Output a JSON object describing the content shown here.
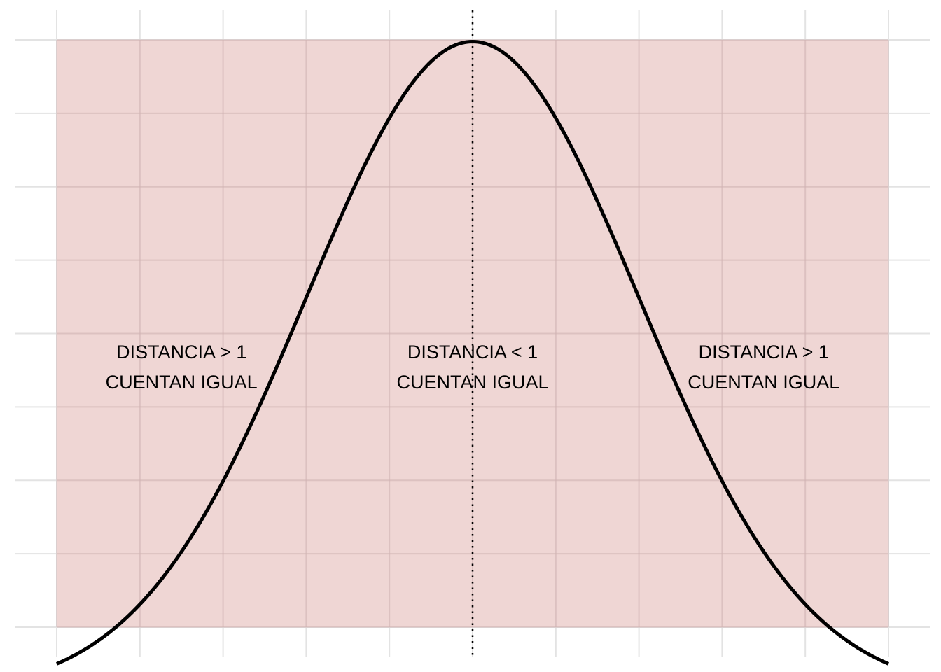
{
  "chart_data": {
    "type": "line",
    "title": "",
    "xlabel": "",
    "ylabel": "",
    "xlim": [
      -2.5,
      2.5
    ],
    "ylim": [
      0.04,
      0.4
    ],
    "grid": true,
    "curve": {
      "function": "normal_pdf",
      "mean": 0,
      "sd": 1,
      "x_range": [
        -2.5,
        2.5
      ],
      "color": "#000000"
    },
    "reference_line": {
      "x": 0,
      "style": "dotted",
      "color": "#000000"
    },
    "shaded_region": {
      "x_range": [
        -2.5,
        2.5
      ],
      "y_range": [
        0.04,
        0.4
      ],
      "color": "#e8c4c2"
    },
    "annotations": [
      {
        "x": -1.75,
        "y": 0.2,
        "line1": "DISTANCIA > 1",
        "line2": "CUENTAN IGUAL"
      },
      {
        "x": 0,
        "y": 0.2,
        "line1": "DISTANCIA < 1",
        "line2": "CUENTAN IGUAL"
      },
      {
        "x": 1.75,
        "y": 0.2,
        "line1": "DISTANCIA > 1",
        "line2": "CUENTAN IGUAL"
      }
    ]
  },
  "colors": {
    "background": "#ffffff",
    "grid": "#e3e3e3",
    "region": "#e8c4c2",
    "curve": "#000000"
  }
}
